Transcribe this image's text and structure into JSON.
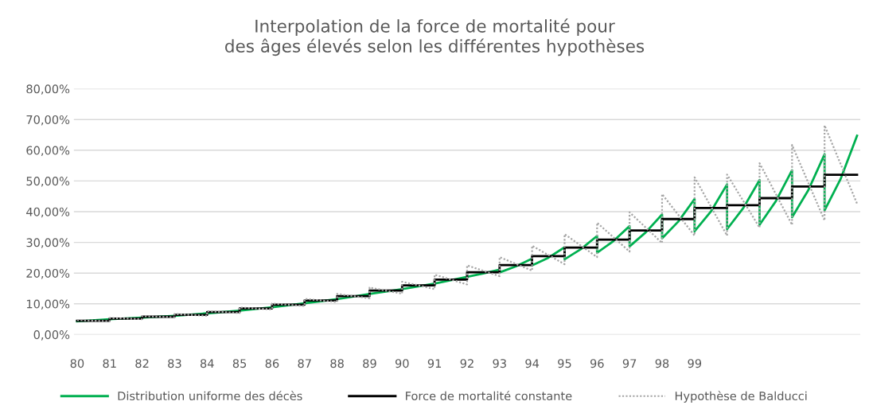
{
  "chart_data": {
    "type": "line",
    "title": "Interpolation de la force de mortalité pour\ndes âges élevés selon les différentes hypothèses",
    "xlim": [
      79.9,
      104.1
    ],
    "xticks": [
      80,
      81,
      82,
      83,
      84,
      85,
      86,
      87,
      88,
      89,
      90,
      91,
      92,
      93,
      94,
      95,
      96,
      97,
      98,
      99
    ],
    "ylim": [
      0,
      80
    ],
    "yticks": [
      {
        "value": 0,
        "label": "0,00%"
      },
      {
        "value": 10,
        "label": "10,00%"
      },
      {
        "value": 20,
        "label": "20,00%"
      },
      {
        "value": 30,
        "label": "30,00%"
      },
      {
        "value": 40,
        "label": "40,00%"
      },
      {
        "value": 50,
        "label": "50,00%"
      },
      {
        "value": 60,
        "label": "60,00%"
      },
      {
        "value": 70,
        "label": "70,00%"
      },
      {
        "value": 80,
        "label": "80,00%"
      }
    ],
    "grid": "y",
    "legend": "bottom",
    "series": [
      {
        "name": "Distribution uniforme des décès",
        "color": "#00b050",
        "line_style": "solid",
        "x": [
          80,
          81,
          82,
          83,
          84,
          85,
          86,
          87,
          88,
          89,
          90,
          91,
          92,
          92.5,
          93,
          93,
          93.5,
          94,
          94,
          94.5,
          95,
          95,
          95.5,
          96,
          96,
          96.5,
          97,
          97,
          97.5,
          98,
          98,
          98.5,
          99,
          99,
          99.5,
          100,
          100,
          100.5,
          101,
          101,
          101.5,
          102,
          102,
          102.5,
          103,
          103,
          103.5,
          104
        ],
        "values": [
          4.3,
          5.0,
          5.5,
          6.1,
          6.9,
          7.8,
          8.9,
          10.2,
          11.5,
          13.2,
          14.8,
          16.6,
          18.8,
          19.9,
          21.1,
          20.2,
          22.2,
          24.7,
          22.5,
          25.0,
          28.4,
          24.5,
          27.8,
          32.1,
          26.6,
          30.4,
          35.3,
          28.7,
          33.3,
          39.1,
          31.3,
          36.8,
          44.1,
          33.6,
          40.0,
          48.9,
          34.3,
          41.2,
          50.3,
          35.7,
          43.4,
          53.5,
          38.2,
          47.0,
          58.7,
          40.4,
          50.8,
          64.7
        ]
      },
      {
        "name": "Force de mortalité constante",
        "color": "#000000",
        "type": "step",
        "line_style": "solid",
        "x": [
          80,
          81,
          82,
          83,
          84,
          85,
          86,
          87,
          88,
          89,
          90,
          91,
          92,
          93,
          94,
          95,
          96,
          97,
          98,
          99,
          100,
          101,
          102,
          103,
          104
        ],
        "values": [
          4.5,
          5.2,
          5.8,
          6.4,
          7.3,
          8.5,
          9.7,
          11.1,
          12.5,
          14.3,
          16.0,
          17.9,
          20.3,
          22.6,
          25.5,
          28.3,
          30.9,
          33.9,
          37.6,
          41.2,
          42.1,
          44.4,
          48.2,
          52.0,
          52.0
        ]
      },
      {
        "name": "Hypothèse de Balducci",
        "color": "#a6a6a6",
        "line_style": "dotted",
        "x": [
          80,
          81,
          81,
          82,
          82,
          83,
          83,
          84,
          84,
          85,
          85,
          86,
          86,
          87,
          87,
          88,
          88,
          89,
          89,
          90,
          90,
          91,
          91,
          92,
          92,
          93,
          93,
          94,
          94,
          95,
          95,
          96,
          96,
          97,
          97,
          98,
          98,
          99,
          99,
          100,
          100,
          101,
          101,
          102,
          102,
          103,
          103,
          104
        ],
        "values": [
          4.7,
          4.3,
          5.4,
          5.0,
          6.0,
          5.6,
          6.7,
          6.1,
          7.6,
          7.0,
          8.8,
          8.2,
          10.1,
          9.3,
          11.6,
          10.6,
          13.2,
          11.8,
          15.3,
          13.3,
          17.2,
          14.8,
          19.5,
          16.3,
          22.5,
          19.0,
          25.2,
          20.8,
          28.9,
          22.9,
          32.7,
          25.2,
          36.4,
          27.0,
          39.8,
          29.8,
          45.7,
          32.2,
          51.2,
          32.2,
          52.1,
          34.8,
          55.8,
          35.7,
          61.7,
          37.1,
          68.1,
          42.6
        ]
      }
    ]
  }
}
